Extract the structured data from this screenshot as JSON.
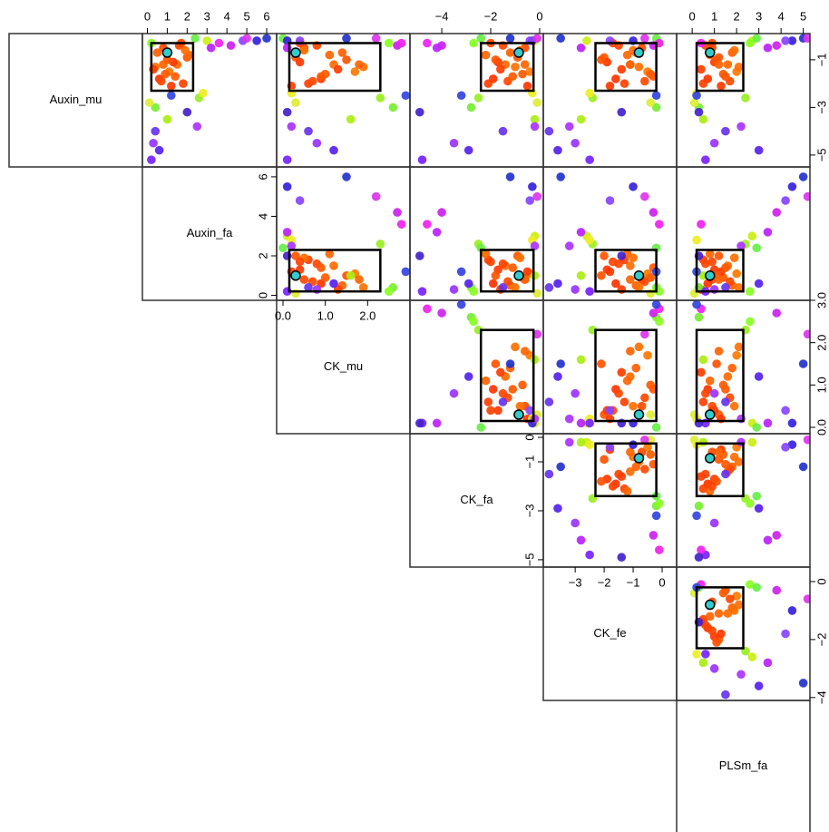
{
  "chart_data": {
    "type": "pairs",
    "variables": [
      {
        "name": "Auxin_mu",
        "lim": [
          -5.5,
          0.1
        ],
        "xticks": [],
        "yticks": [
          {
            "value": -1,
            "label": "−1"
          },
          {
            "value": -3,
            "label": "−3"
          },
          {
            "value": -5,
            "label": "−5"
          }
        ],
        "box": [
          -2.3,
          -0.3
        ],
        "highlight": -0.7
      },
      {
        "name": "Auxin_fa",
        "lim": [
          -0.25,
          6.5
        ],
        "xticks": [
          0,
          1,
          2,
          3,
          4,
          5,
          6
        ],
        "yticks": [
          0,
          2,
          4,
          6
        ],
        "box": [
          0.2,
          2.3
        ],
        "highlight": 1.0
      },
      {
        "name": "CK_mu",
        "lim": [
          -0.15,
          3.0
        ],
        "xticks": [
          {
            "value": 0,
            "label": "0.0"
          },
          {
            "value": 1,
            "label": "1.0"
          },
          {
            "value": 2,
            "label": "2.0"
          }
        ],
        "yticks": [
          {
            "value": 0,
            "label": "0.0"
          },
          {
            "value": 1,
            "label": "1.0"
          },
          {
            "value": 2,
            "label": "2.0"
          },
          {
            "value": 3,
            "label": "3.0"
          }
        ],
        "box": [
          0.15,
          2.3
        ],
        "highlight": 0.3
      },
      {
        "name": "CK_fa",
        "lim": [
          -5.3,
          0.15
        ],
        "xticks": [
          {
            "value": -4,
            "label": "−4"
          },
          {
            "value": -2,
            "label": "−2"
          },
          0
        ],
        "yticks": [
          0,
          {
            "value": -1,
            "label": "−1"
          },
          {
            "value": -3,
            "label": "−3"
          },
          {
            "value": -5,
            "label": "−5"
          }
        ],
        "box": [
          -2.4,
          -0.25
        ],
        "highlight": -0.85
      },
      {
        "name": "CK_fe",
        "lim": [
          -4.1,
          0.5
        ],
        "xticks": [
          {
            "value": -3,
            "label": "−3"
          },
          {
            "value": -2,
            "label": "−2"
          },
          {
            "value": -1,
            "label": "−1"
          },
          0
        ],
        "yticks": [
          0,
          {
            "value": -2,
            "label": "−2"
          },
          {
            "value": -4,
            "label": "−4"
          }
        ],
        "box": [
          -2.3,
          -0.2
        ],
        "highlight": -0.8
      },
      {
        "name": "PLSm_fa",
        "lim": [
          -0.7,
          5.3
        ],
        "xticks": [
          0,
          1,
          2,
          3,
          4,
          5
        ],
        "yticks": [],
        "box": [
          0.2,
          2.3
        ],
        "highlight": 0.8
      }
    ],
    "highlight_color": "#33cccc",
    "points": [
      [
        -0.5,
        0.8,
        0.5,
        -0.6,
        -0.7,
        0.9
      ],
      [
        -1.2,
        1.5,
        1.2,
        -1.4,
        -1.1,
        1.6
      ],
      [
        -1.8,
        0.6,
        0.9,
        -1.9,
        -1.6,
        0.7
      ],
      [
        -0.9,
        2.0,
        0.3,
        -0.9,
        -2.0,
        1.2
      ],
      [
        -1.5,
        1.1,
        1.7,
        -0.4,
        -0.5,
        2.0
      ],
      [
        -2.0,
        1.8,
        0.6,
        -2.1,
        -1.3,
        0.5
      ],
      [
        -0.7,
        0.5,
        1.4,
        -1.2,
        -0.9,
        1.8
      ],
      [
        -1.1,
        1.3,
        0.4,
        -1.7,
        -1.9,
        1.0
      ],
      [
        -1.6,
        0.9,
        1.0,
        -0.7,
        -0.4,
        1.4
      ],
      [
        -0.4,
        1.6,
        0.8,
        -1.5,
        -1.5,
        0.6
      ],
      [
        -1.3,
        0.4,
        1.9,
        -1.0,
        -0.8,
        2.1
      ],
      [
        -2.1,
        1.2,
        0.2,
        -0.5,
        -1.8,
        1.3
      ],
      [
        -0.8,
        2.1,
        1.1,
        -2.2,
        -1.2,
        0.8
      ],
      [
        -1.9,
        0.7,
        0.7,
        -1.3,
        -0.6,
        1.7
      ],
      [
        -1.0,
        1.0,
        1.5,
        -1.8,
        -2.1,
        1.1
      ],
      [
        -0.6,
        1.9,
        0.5,
        -0.8,
        -1.0,
        1.9
      ],
      [
        -1.4,
        0.3,
        1.3,
        -1.6,
        -1.4,
        0.4
      ],
      [
        -1.7,
        1.4,
        0.9,
        -1.1,
        -0.3,
        1.5
      ],
      [
        -0.3,
        1.7,
        0.4,
        -2.0,
        -1.7,
        0.9
      ],
      [
        -1.2,
        0.8,
        1.8,
        -0.6,
        -1.1,
        1.2
      ],
      [
        -2.6,
        2.6,
        2.3,
        -2.5,
        -2.4,
        2.4
      ],
      [
        -0.2,
        3.0,
        0.1,
        -0.2,
        -2.6,
        2.7
      ],
      [
        -3.0,
        0.4,
        2.6,
        -2.8,
        -0.2,
        0.3
      ],
      [
        -2.4,
        2.8,
        0.2,
        -0.3,
        -2.5,
        0.2
      ],
      [
        -0.3,
        0.2,
        2.5,
        -2.7,
        -0.1,
        2.6
      ],
      [
        -3.5,
        1.0,
        1.6,
        -0.2,
        -2.8,
        0.5
      ],
      [
        -0.1,
        2.4,
        0.0,
        -2.4,
        -0.2,
        2.9
      ],
      [
        -2.8,
        0.1,
        0.3,
        -0.1,
        -0.4,
        0.1
      ],
      [
        -4.5,
        0.3,
        0.8,
        -3.5,
        -3.0,
        1.0
      ],
      [
        -0.2,
        5.5,
        0.1,
        -0.3,
        -1.0,
        4.5
      ],
      [
        -0.4,
        4.2,
        2.7,
        -4.0,
        -0.3,
        3.8
      ],
      [
        -5.2,
        0.2,
        0.1,
        -4.8,
        -2.5,
        0.6
      ],
      [
        -0.1,
        6.0,
        1.5,
        -1.2,
        -3.5,
        5.0
      ],
      [
        -3.8,
        2.5,
        0.2,
        -0.2,
        -3.2,
        2.2
      ],
      [
        -0.3,
        3.6,
        2.8,
        -4.6,
        -0.1,
        0.4
      ],
      [
        -4.8,
        0.6,
        1.2,
        -2.9,
        -3.6,
        3.0
      ],
      [
        -0.2,
        4.8,
        0.4,
        -0.4,
        -1.8,
        4.2
      ],
      [
        -2.5,
        1.2,
        2.9,
        -3.2,
        -0.2,
        0.2
      ],
      [
        -0.5,
        3.2,
        0.1,
        -4.2,
        -2.8,
        3.4
      ],
      [
        -4.0,
        0.4,
        0.6,
        -1.5,
        -3.9,
        1.5
      ],
      [
        -0.1,
        5.0,
        2.2,
        -0.1,
        -0.6,
        5.2
      ],
      [
        -3.2,
        2.0,
        0.1,
        -4.9,
        -1.4,
        0.3
      ]
    ],
    "point_colors": [
      "#ff4a00",
      "#ff6a00",
      "#ff3300",
      "#ff5500",
      "#ff7a00",
      "#ff4000",
      "#ff6000",
      "#ff3a00",
      "#ff5a00",
      "#ff4500",
      "#ff7000",
      "#ff3800",
      "#ff6500",
      "#ff4800",
      "#ff5200",
      "#ff6f00",
      "#ff3d00",
      "#ff5800",
      "#ff4300",
      "#ff6300",
      "#99ee22",
      "#ccee11",
      "#77ee33",
      "#eeee22",
      "#88ff22",
      "#aaee11",
      "#66ee44",
      "#ddee33",
      "#9933ff",
      "#3322dd",
      "#cc22ee",
      "#7722ff",
      "#2233cc",
      "#aa33ff",
      "#ee22ee",
      "#5522ee",
      "#8844ff",
      "#3344dd",
      "#bb22ff",
      "#6633ee",
      "#dd33ee",
      "#4422cc"
    ]
  }
}
